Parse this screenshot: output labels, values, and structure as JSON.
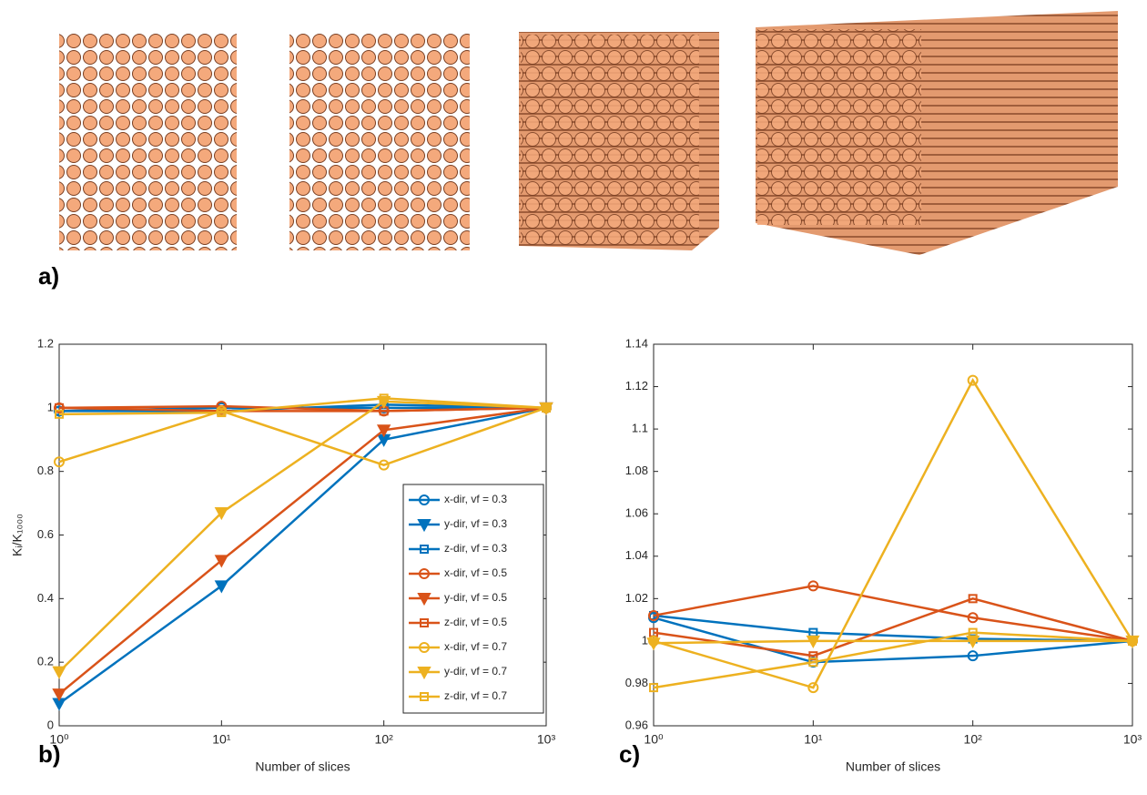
{
  "figure": {
    "panel_labels": [
      "a)",
      "b)",
      "c)"
    ]
  },
  "chart_data": [
    {
      "type": "line",
      "xlabel": "Number of slices",
      "ylabel": "Kᵢ/K₁₀₀₀",
      "xscale": "log",
      "x": [
        1,
        10,
        100,
        1000
      ],
      "xlim": [
        1,
        1000
      ],
      "xticks": [
        {
          "value": 1,
          "label": "10⁰"
        },
        {
          "value": 10,
          "label": "10¹"
        },
        {
          "value": 100,
          "label": "10²"
        },
        {
          "value": 1000,
          "label": "10³"
        }
      ],
      "ylim": [
        0,
        1.2
      ],
      "yticks": [
        0,
        0.2,
        0.4,
        0.6,
        0.8,
        1,
        1.2
      ],
      "legend": "lower right",
      "series": [
        {
          "name": "x-dir, vf = 0.3",
          "color": "#0072bd",
          "marker": "circle",
          "values": [
            0.99,
            1.0,
            1.0,
            1.0
          ]
        },
        {
          "name": "y-dir, vf = 0.3",
          "color": "#0072bd",
          "marker": "triangle",
          "values": [
            0.07,
            0.44,
            0.9,
            1.0
          ]
        },
        {
          "name": "z-dir, vf = 0.3",
          "color": "#0072bd",
          "marker": "square",
          "values": [
            0.99,
            0.99,
            1.01,
            1.0
          ]
        },
        {
          "name": "x-dir, vf = 0.5",
          "color": "#d95319",
          "marker": "circle",
          "values": [
            1.0,
            1.005,
            0.99,
            1.0
          ]
        },
        {
          "name": "y-dir, vf = 0.5",
          "color": "#d95319",
          "marker": "triangle",
          "values": [
            0.1,
            0.52,
            0.93,
            1.0
          ]
        },
        {
          "name": "z-dir, vf = 0.5",
          "color": "#d95319",
          "marker": "square",
          "values": [
            1.0,
            0.99,
            0.99,
            1.0
          ]
        },
        {
          "name": "x-dir, vf = 0.7",
          "color": "#edb120",
          "marker": "circle",
          "values": [
            0.83,
            0.99,
            0.82,
            1.0
          ]
        },
        {
          "name": "y-dir, vf = 0.7",
          "color": "#edb120",
          "marker": "triangle",
          "values": [
            0.17,
            0.67,
            1.02,
            1.0
          ]
        },
        {
          "name": "z-dir, vf = 0.7",
          "color": "#edb120",
          "marker": "square",
          "values": [
            0.98,
            0.985,
            1.03,
            1.0
          ]
        }
      ]
    },
    {
      "type": "line",
      "xlabel": "Number of slices",
      "xscale": "log",
      "x": [
        1,
        10,
        100,
        1000
      ],
      "xlim": [
        1,
        1000
      ],
      "xticks": [
        {
          "value": 1,
          "label": "10⁰"
        },
        {
          "value": 10,
          "label": "10¹"
        },
        {
          "value": 100,
          "label": "10²"
        },
        {
          "value": 1000,
          "label": "10³"
        }
      ],
      "ylim": [
        0.96,
        1.14
      ],
      "yticks": [
        0.96,
        0.98,
        1,
        1.02,
        1.04,
        1.06,
        1.08,
        1.1,
        1.12,
        1.14
      ],
      "series": [
        {
          "color": "#0072bd",
          "marker": "circle",
          "values": [
            1.011,
            0.99,
            0.993,
            1.0
          ]
        },
        {
          "color": "#0072bd",
          "marker": "square",
          "values": [
            1.012,
            1.004,
            1.001,
            1.0
          ]
        },
        {
          "color": "#d95319",
          "marker": "circle",
          "values": [
            1.012,
            1.026,
            1.011,
            1.0
          ]
        },
        {
          "color": "#d95319",
          "marker": "square",
          "values": [
            1.004,
            0.993,
            1.02,
            1.0
          ]
        },
        {
          "color": "#edb120",
          "marker": "circle",
          "values": [
            1.0,
            0.978,
            1.123,
            1.0
          ]
        },
        {
          "color": "#edb120",
          "marker": "triangle",
          "values": [
            0.999,
            1.0,
            1.0,
            1.0
          ]
        },
        {
          "color": "#edb120",
          "marker": "square",
          "values": [
            0.978,
            0.99,
            1.004,
            1.0
          ]
        }
      ]
    }
  ]
}
